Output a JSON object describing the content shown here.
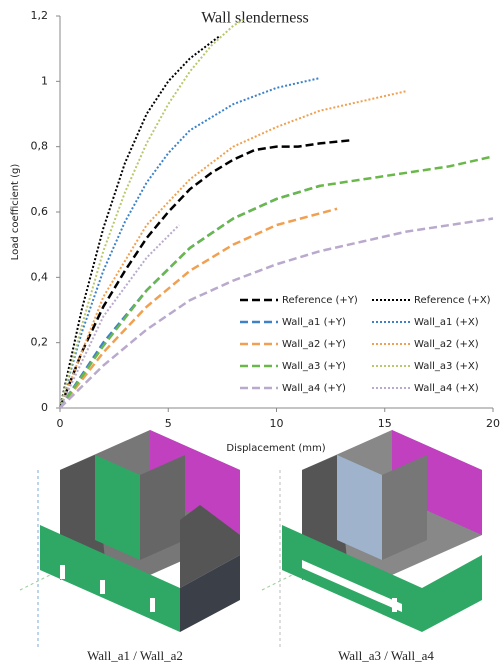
{
  "chart_data": {
    "type": "line",
    "title": "Wall slenderness",
    "xlabel": "Displacement (mm)",
    "ylabel": "Load coefficient (g)",
    "xlim": [
      0,
      20
    ],
    "xticks": [
      0,
      5,
      10,
      15,
      20
    ],
    "ylim": [
      0,
      1.2
    ],
    "yticks": [
      0,
      {
        "value": 0.2,
        "label": "0,2"
      },
      {
        "value": 0.4,
        "label": "0,4"
      },
      {
        "value": 0.6,
        "label": "0,6"
      },
      {
        "value": 0.8,
        "label": "0,8"
      },
      {
        "value": 1,
        "label": "1"
      },
      {
        "value": 1.2,
        "label": "1,2"
      }
    ],
    "legend": "lower right",
    "series": [
      {
        "name": "Reference (+Y)",
        "color": "#000000",
        "dash": "dashed",
        "x": [
          0,
          1,
          2,
          3,
          4,
          5,
          6,
          7,
          8,
          9,
          10,
          11,
          12,
          13.5
        ],
        "values": [
          0,
          0.17,
          0.31,
          0.42,
          0.52,
          0.6,
          0.67,
          0.72,
          0.76,
          0.79,
          0.8,
          0.8,
          0.81,
          0.82
        ]
      },
      {
        "name": "Reference (+X)",
        "color": "#000000",
        "dash": "dotted",
        "x": [
          0,
          1,
          2,
          3,
          4,
          5,
          6,
          7,
          7.4
        ],
        "values": [
          0,
          0.3,
          0.55,
          0.75,
          0.9,
          1.0,
          1.07,
          1.12,
          1.14
        ]
      },
      {
        "name": "Wall_a1 (+Y)",
        "color": "#3d82c8",
        "dash": "dashed",
        "x": [
          0,
          2,
          4,
          6,
          8,
          10,
          12
        ],
        "values": [
          0,
          0.2,
          0.36,
          0.49,
          0.58,
          0.64,
          0.68
        ]
      },
      {
        "name": "Wall_a1 (+X)",
        "color": "#3d82c8",
        "dash": "dotted",
        "x": [
          0,
          1,
          2,
          3,
          4,
          5,
          6,
          8,
          10,
          12
        ],
        "values": [
          0,
          0.23,
          0.42,
          0.57,
          0.69,
          0.78,
          0.85,
          0.93,
          0.98,
          1.01
        ]
      },
      {
        "name": "Wall_a2 (+Y)",
        "color": "#f0a050",
        "dash": "dashed",
        "x": [
          0,
          2,
          4,
          6,
          8,
          10,
          12.8
        ],
        "values": [
          0,
          0.17,
          0.31,
          0.42,
          0.5,
          0.56,
          0.61
        ]
      },
      {
        "name": "Wall_a2 (+X)",
        "color": "#f0a050",
        "dash": "dotted",
        "x": [
          0,
          2,
          4,
          6,
          8,
          10,
          12,
          14,
          16
        ],
        "values": [
          0,
          0.34,
          0.56,
          0.7,
          0.8,
          0.86,
          0.91,
          0.94,
          0.97
        ]
      },
      {
        "name": "Wall_a3 (+Y)",
        "color": "#6ab84a",
        "dash": "dashed",
        "x": [
          0,
          2,
          4,
          6,
          8,
          10,
          12,
          14,
          16,
          18,
          20
        ],
        "values": [
          0,
          0.19,
          0.36,
          0.49,
          0.58,
          0.64,
          0.68,
          0.7,
          0.72,
          0.74,
          0.77
        ]
      },
      {
        "name": "Wall_a3 (+X)",
        "color": "#b8c86a",
        "dash": "dotted",
        "x": [
          0,
          1,
          2,
          3,
          4,
          5,
          6,
          7,
          8,
          8.5
        ],
        "values": [
          0,
          0.25,
          0.48,
          0.66,
          0.81,
          0.93,
          1.03,
          1.11,
          1.17,
          1.19
        ]
      },
      {
        "name": "Wall_a4 (+Y)",
        "color": "#b9a9cc",
        "dash": "dashed",
        "x": [
          0,
          2,
          4,
          6,
          8,
          10,
          12,
          14,
          16,
          18,
          20
        ],
        "values": [
          0,
          0.13,
          0.24,
          0.33,
          0.39,
          0.44,
          0.48,
          0.51,
          0.54,
          0.56,
          0.58
        ]
      },
      {
        "name": "Wall_a4 (+X)",
        "color": "#b9a9cc",
        "dash": "dotted",
        "x": [
          0,
          2,
          4,
          5.5
        ],
        "values": [
          0,
          0.28,
          0.46,
          0.56
        ]
      }
    ]
  },
  "figures": [
    {
      "caption": "Wall_a1 / Wall_a2"
    },
    {
      "caption": "Wall_a3 / Wall_a4"
    }
  ]
}
